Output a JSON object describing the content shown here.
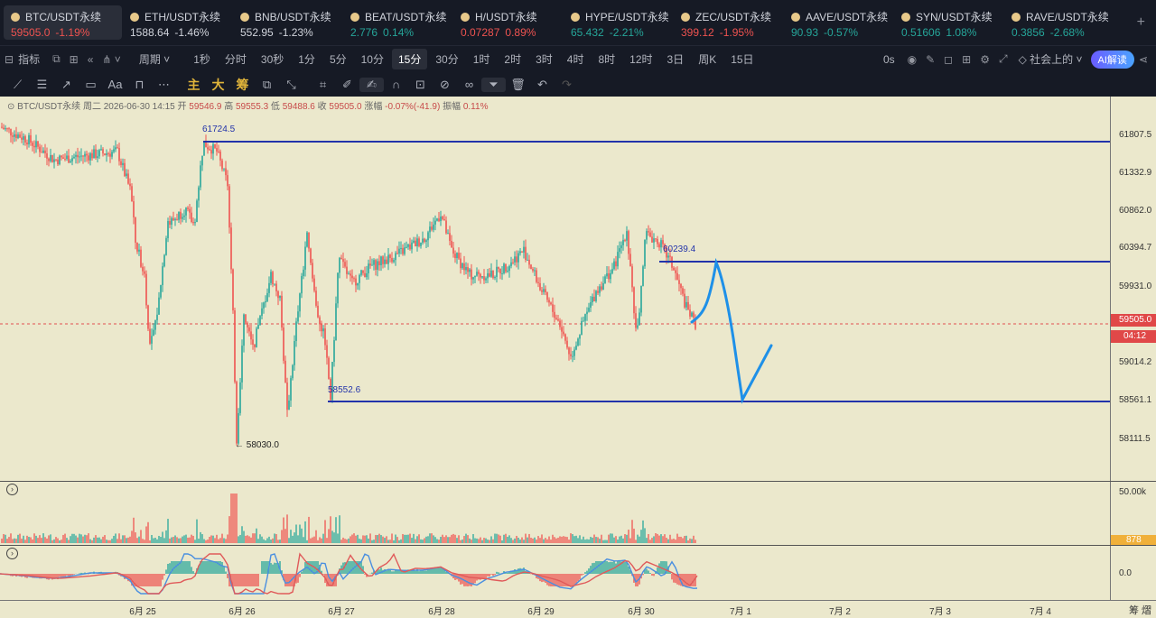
{
  "tickers": [
    {
      "symbol": "BTC/USDT永续",
      "price": "59505.0",
      "change": "-1.19%",
      "price_dir": "down",
      "change_dir": "down",
      "active": true
    },
    {
      "symbol": "ETH/USDT永续",
      "price": "1588.64",
      "change": "-1.46%",
      "price_dir": "neutral",
      "change_dir": "neutral"
    },
    {
      "symbol": "BNB/USDT永续",
      "price": "552.95",
      "change": "-1.23%",
      "price_dir": "neutral",
      "change_dir": "neutral"
    },
    {
      "symbol": "BEAT/USDT永续",
      "price": "2.776",
      "change": "0.14%",
      "price_dir": "up",
      "change_dir": "up"
    },
    {
      "symbol": "H/USDT永续",
      "price": "0.07287",
      "change": "0.89%",
      "price_dir": "down",
      "change_dir": "down"
    },
    {
      "symbol": "HYPE/USDT永续",
      "price": "65.432",
      "change": "-2.21%",
      "price_dir": "up",
      "change_dir": "up"
    },
    {
      "symbol": "ZEC/USDT永续",
      "price": "399.12",
      "change": "-1.95%",
      "price_dir": "down",
      "change_dir": "down"
    },
    {
      "symbol": "AAVE/USDT永续",
      "price": "90.93",
      "change": "-0.57%",
      "price_dir": "up",
      "change_dir": "up"
    },
    {
      "symbol": "SYN/USDT永续",
      "price": "0.51606",
      "change": "1.08%",
      "price_dir": "up",
      "change_dir": "up"
    },
    {
      "symbol": "RAVE/USDT永续",
      "price": "0.3856",
      "change": "-2.68%",
      "price_dir": "up",
      "change_dir": "up"
    }
  ],
  "add_tab_icon": "plus-icon",
  "toolbar": {
    "indicator_label": "指标",
    "period_label": "周期",
    "intervals": [
      "1秒",
      "分时",
      "30秒",
      "1分",
      "5分",
      "10分",
      "15分",
      "30分",
      "1时",
      "2时",
      "3时",
      "4时",
      "8时",
      "12时",
      "3日",
      "周K",
      "15日"
    ],
    "active_interval": "15分",
    "countdown_option": "0s",
    "community_label": "社会上的",
    "ai_label": "AI解读"
  },
  "draw_toolbar": {
    "gold_labels": [
      "主",
      "大",
      "筹"
    ]
  },
  "chart": {
    "ohlc": {
      "symbol": "BTC/USDT永续",
      "weekday": "周二",
      "datetime": "2026-06-30 14:15",
      "open_label": "开",
      "open": "59546.9",
      "high_label": "高",
      "high": "59555.3",
      "low_label": "低",
      "low": "59488.6",
      "close_label": "收",
      "close": "59505.0",
      "change_label": "涨幅",
      "change": "-0.07%(-41.9)",
      "amplitude_label": "振幅",
      "amplitude": "0.11%"
    },
    "price_ticks": [
      "61807.5",
      "61332.9",
      "60862.0",
      "60394.7",
      "59931.0",
      "59014.2",
      "58561.1",
      "58111.5"
    ],
    "current_price_label": "59505.0",
    "countdown_label": "04:12",
    "volume_tick": "50.00k",
    "volume_value": "878",
    "macd_tick": "0.0",
    "time_labels": [
      "6月 25",
      "6月 26",
      "6月 27",
      "6月 28",
      "6月 29",
      "6月 30",
      "7月 1",
      "7月 2",
      "7月 3",
      "7月 4"
    ],
    "annotations": {
      "high_mark": "61724.5",
      "mid_mark": "60239.4",
      "low_mark": "58552.6",
      "low_extreme": "← 58030.0"
    },
    "colors": {
      "up": "#26a69a",
      "down": "#ef5350",
      "level_line": "#2233aa",
      "projection": "#1e90e8",
      "background": "#ebe8cc"
    }
  },
  "bottom_right_label": "筹 熠"
}
